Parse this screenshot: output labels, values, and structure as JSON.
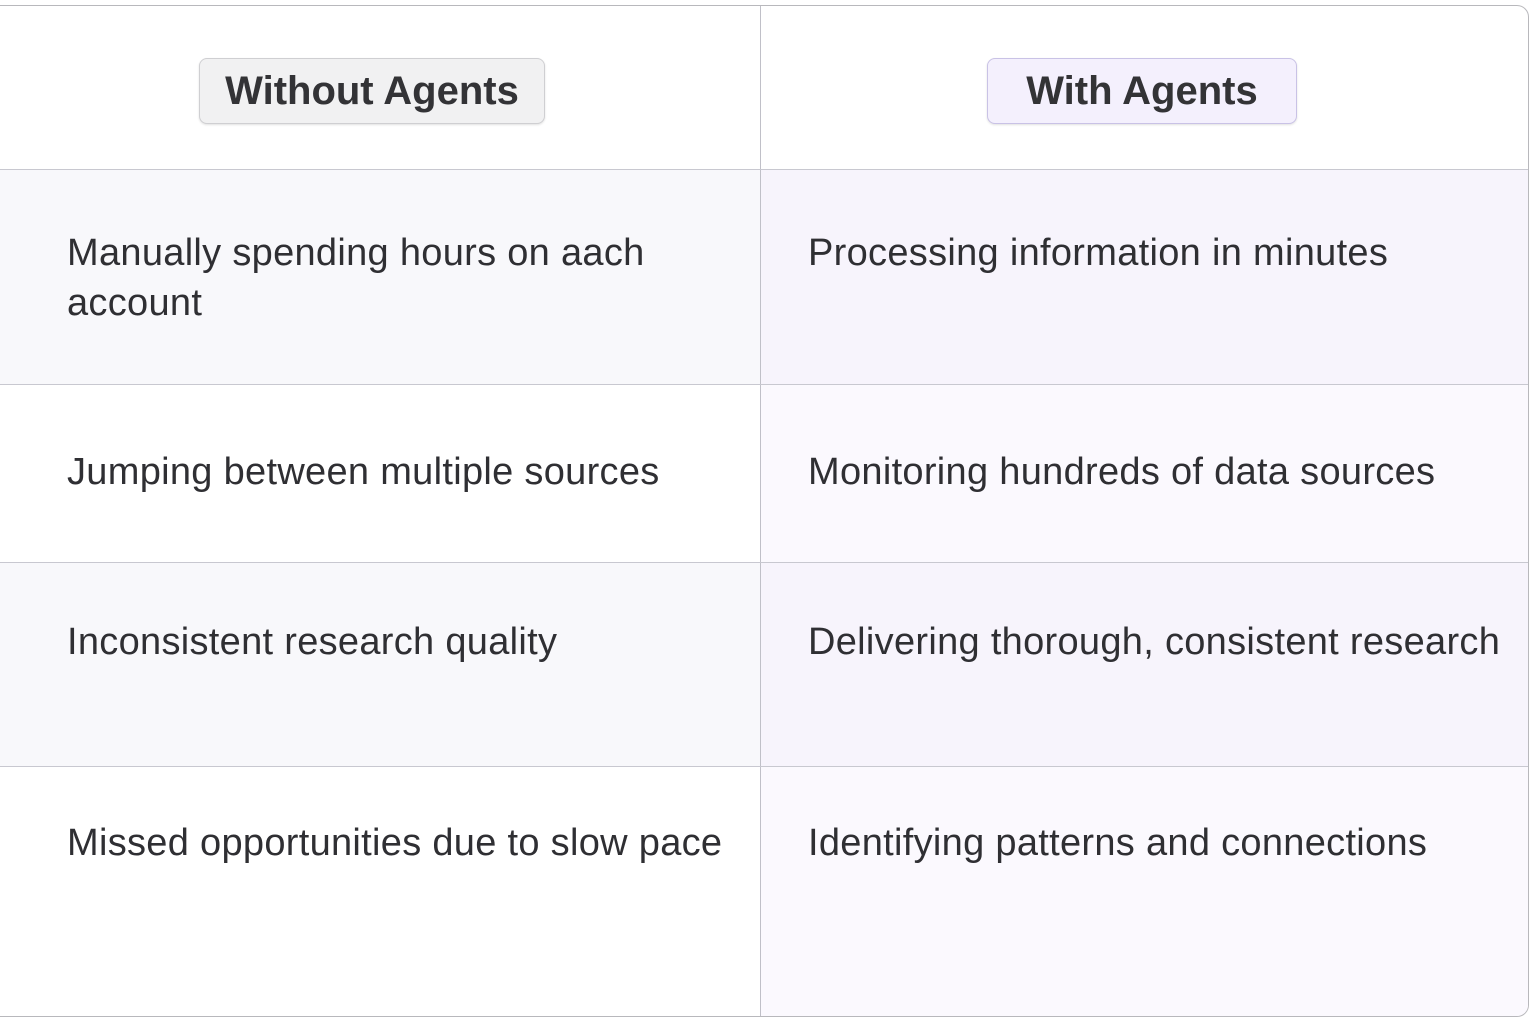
{
  "headers": {
    "without": "Without Agents",
    "with": "With Agents"
  },
  "rows": [
    {
      "without": "Manually spending hours on aach account",
      "with": "Processing information in minutes"
    },
    {
      "without": "Jumping between multiple sources",
      "with": "Monitoring hundreds of data sources"
    },
    {
      "without": "Inconsistent research quality",
      "with": "Delivering thorough, consistent research"
    },
    {
      "without": "Missed opportunities due to slow pace",
      "with": "Identifying patterns and connections"
    }
  ],
  "colors": {
    "without_badge": "#f1f1f2",
    "with_badge": "#f4f0fd",
    "with_column": "#f7f4fc"
  }
}
